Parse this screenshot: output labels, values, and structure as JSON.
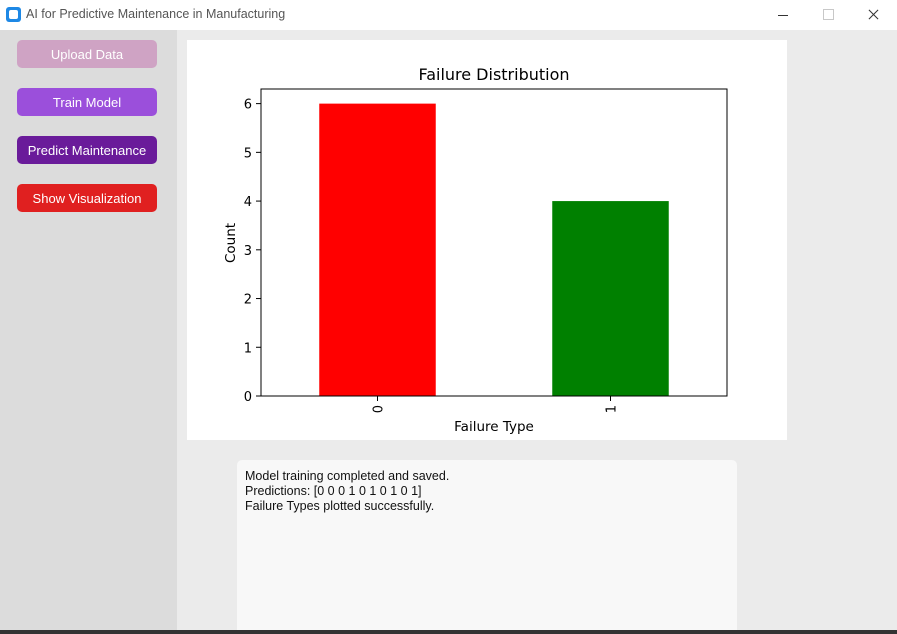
{
  "window": {
    "title": "AI for Predictive Maintenance in Manufacturing"
  },
  "sidebar": {
    "buttons": [
      {
        "label": "Upload Data",
        "color": "#cfa3c4"
      },
      {
        "label": "Train Model",
        "color": "#9b4fdb"
      },
      {
        "label": "Predict Maintenance",
        "color": "#6a1b9a"
      },
      {
        "label": "Show Visualization",
        "color": "#e02020"
      }
    ]
  },
  "chart_data": {
    "type": "bar",
    "title": "Failure Distribution",
    "xlabel": "Failure Type",
    "ylabel": "Count",
    "categories": [
      "0",
      "1"
    ],
    "values": [
      6,
      4
    ],
    "colors": [
      "#ff0000",
      "#008000"
    ],
    "ylim": [
      0,
      6.3
    ],
    "yticks": [
      0,
      1,
      2,
      3,
      4,
      5,
      6
    ],
    "grid": false,
    "xtick_rotation": 90
  },
  "log": {
    "lines": [
      "Model training completed and saved.",
      "Predictions: [0 0 0 1 0 1 0 1 0 1]",
      "Failure Types plotted successfully."
    ]
  }
}
